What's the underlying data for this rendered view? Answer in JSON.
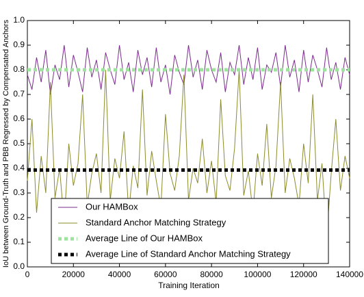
{
  "chart_data": {
    "type": "line",
    "xlabel": "Training Iteration",
    "ylabel": "IoU between Ground-Truth and PBB Regressed by Compensated Anchors",
    "xlim": [
      0,
      140000
    ],
    "xticks": [
      0,
      20000,
      40000,
      60000,
      80000,
      100000,
      120000,
      140000
    ],
    "ylim": [
      0,
      1
    ],
    "yticks": [
      {
        "value": 0,
        "label": "0.0"
      },
      {
        "value": 0.1,
        "label": "0.1"
      },
      {
        "value": 0.2,
        "label": "0.2"
      },
      {
        "value": 0.3,
        "label": "0.3"
      },
      {
        "value": 0.4,
        "label": "0.4"
      },
      {
        "value": 0.5,
        "label": "0.5"
      },
      {
        "value": 0.6,
        "label": "0.6"
      },
      {
        "value": 0.7,
        "label": "0.7"
      },
      {
        "value": 0.8,
        "label": "0.8"
      },
      {
        "value": 0.9,
        "label": "0.9"
      },
      {
        "value": 1,
        "label": "1.0"
      }
    ],
    "legend": "lower center",
    "x": [
      0,
      2000,
      4000,
      6000,
      8000,
      10000,
      12000,
      14000,
      16000,
      18000,
      20000,
      22000,
      24000,
      26000,
      28000,
      30000,
      32000,
      34000,
      36000,
      38000,
      40000,
      42000,
      44000,
      46000,
      48000,
      50000,
      52000,
      54000,
      56000,
      58000,
      60000,
      62000,
      64000,
      66000,
      68000,
      70000,
      72000,
      74000,
      76000,
      78000,
      80000,
      82000,
      84000,
      86000,
      88000,
      90000,
      92000,
      94000,
      96000,
      98000,
      100000,
      102000,
      104000,
      106000,
      108000,
      110000,
      112000,
      114000,
      116000,
      118000,
      120000,
      122000,
      124000,
      126000,
      128000,
      130000,
      132000,
      134000,
      136000,
      138000,
      140000
    ],
    "series": [
      {
        "name": "Our HAMBox",
        "color": "#7b2a8e",
        "style": "solid",
        "values": [
          0.78,
          0.72,
          0.85,
          0.75,
          0.88,
          0.7,
          0.82,
          0.76,
          0.9,
          0.73,
          0.86,
          0.79,
          0.71,
          0.89,
          0.77,
          0.84,
          0.72,
          0.87,
          0.8,
          0.74,
          0.9,
          0.76,
          0.83,
          0.71,
          0.88,
          0.78,
          0.85,
          0.73,
          0.89,
          0.75,
          0.82,
          0.7,
          0.86,
          0.79,
          0.74,
          0.9,
          0.77,
          0.84,
          0.72,
          0.88,
          0.8,
          0.75,
          0.87,
          0.71,
          0.83,
          0.78,
          0.9,
          0.74,
          0.85,
          0.76,
          0.89,
          0.72,
          0.82,
          0.79,
          0.87,
          0.73,
          0.9,
          0.77,
          0.84,
          0.71,
          0.88,
          0.75,
          0.86,
          0.8,
          0.73,
          0.89,
          0.76,
          0.83,
          0.72,
          0.85,
          0.78
        ]
      },
      {
        "name": "Standard Anchor Matching Strategy",
        "color": "#8b8b2a",
        "style": "solid",
        "values": [
          0.35,
          0.6,
          0.22,
          0.45,
          0.3,
          0.75,
          0.28,
          0.4,
          0.18,
          0.5,
          0.33,
          0.42,
          0.7,
          0.25,
          0.38,
          0.46,
          0.3,
          0.8,
          0.27,
          0.44,
          0.36,
          0.55,
          0.22,
          0.41,
          0.32,
          0.72,
          0.29,
          0.47,
          0.35,
          0.24,
          0.62,
          0.38,
          0.31,
          0.45,
          0.78,
          0.27,
          0.4,
          0.34,
          0.52,
          0.3,
          0.43,
          0.26,
          0.68,
          0.37,
          0.31,
          0.48,
          0.8,
          0.29,
          0.39,
          0.22,
          0.46,
          0.33,
          0.58,
          0.28,
          0.41,
          0.75,
          0.3,
          0.44,
          0.36,
          0.25,
          0.5,
          0.34,
          0.7,
          0.27,
          0.42,
          0.12,
          0.38,
          0.6,
          0.31,
          0.45,
          0.36
        ]
      },
      {
        "name": "Average Line of Our HAMBox",
        "color": "#9de39d",
        "style": "dashed",
        "x": [
          0,
          140000
        ],
        "values": [
          0.8,
          0.8
        ]
      },
      {
        "name": "Average Line of Standard Anchor Matching Strategy",
        "color": "#000000",
        "style": "dashed",
        "x": [
          0,
          140000
        ],
        "values": [
          0.393,
          0.393
        ]
      }
    ]
  }
}
